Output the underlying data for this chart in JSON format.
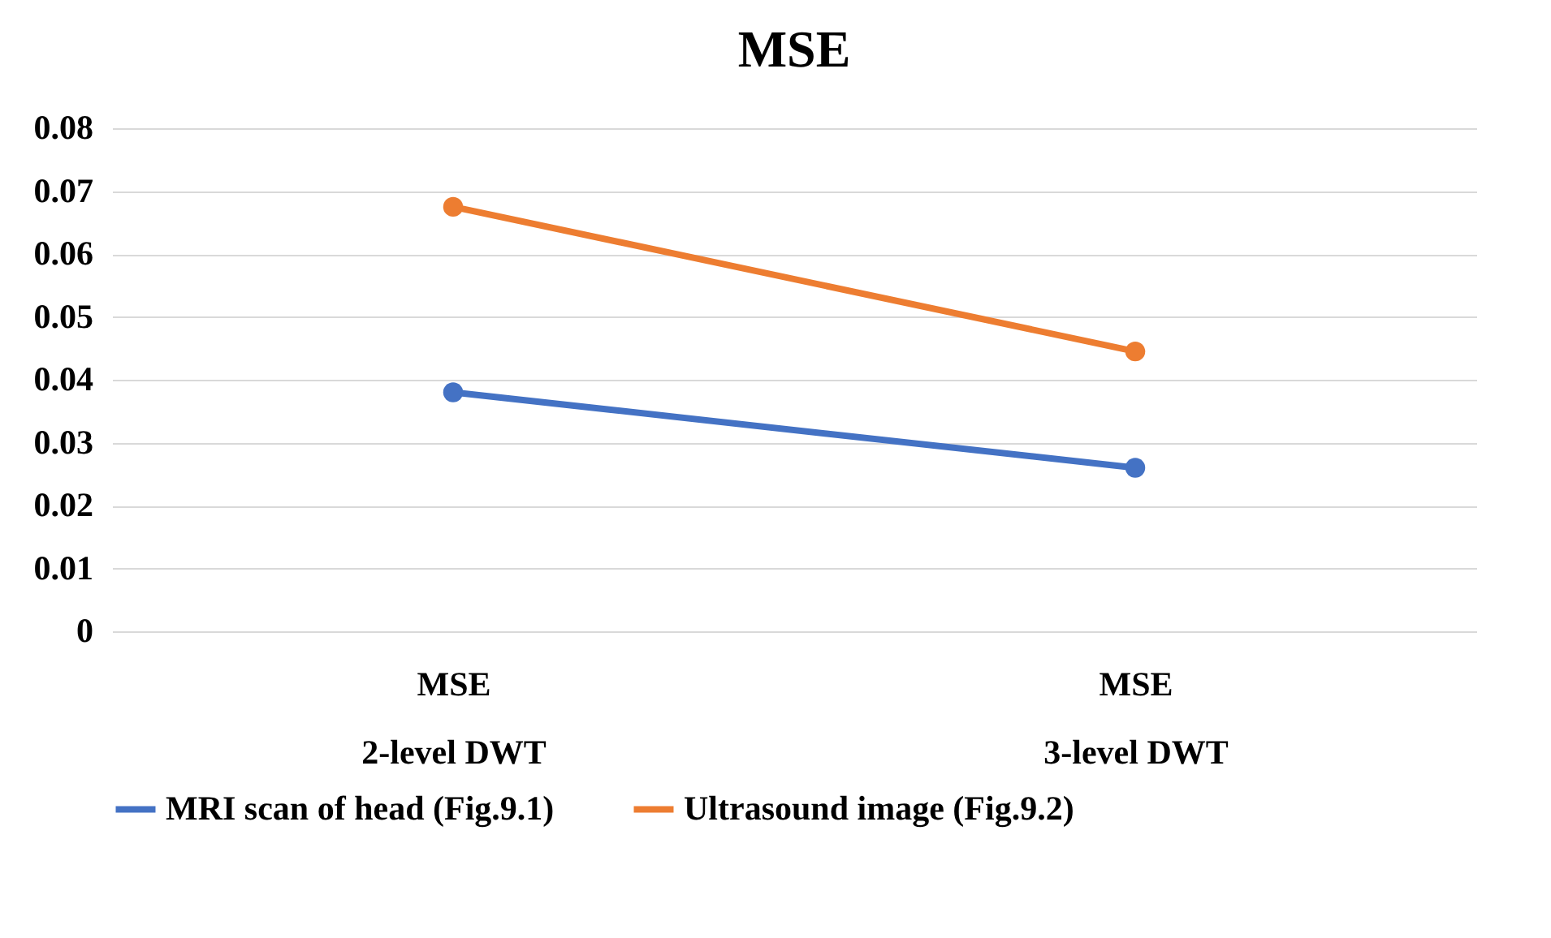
{
  "chart_data": {
    "type": "line",
    "title": "MSE",
    "categories": [
      "MSE\n2-level DWT",
      "MSE\n3-level DWT"
    ],
    "series": [
      {
        "name": "MRI scan of head (Fig.9.1)",
        "color": "#4472c4",
        "values": [
          0.038,
          0.026
        ]
      },
      {
        "name": "Ultrasound image (Fig.9.2)",
        "color": "#ed7d31",
        "values": [
          0.0675,
          0.0445
        ]
      }
    ],
    "ylim": [
      0,
      0.08
    ],
    "yticks": [
      0,
      0.01,
      0.02,
      0.03,
      0.04,
      0.05,
      0.06,
      0.07,
      0.08
    ],
    "grid": "y",
    "legend": "bottom",
    "marker": "circle",
    "line_style": "solid"
  }
}
